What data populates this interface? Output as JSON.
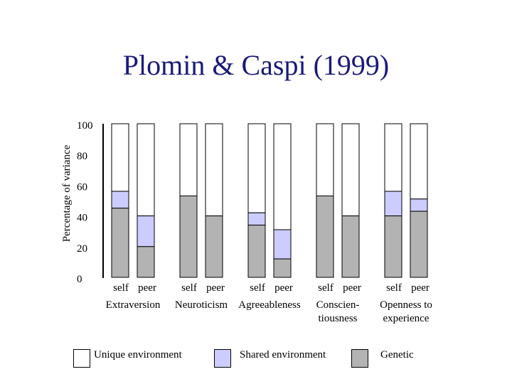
{
  "chart_data": {
    "type": "bar",
    "stacked": true,
    "title": "Plomin & Caspi (1999)",
    "ylabel": "Percentage of variance",
    "ylim": [
      0,
      100
    ],
    "yticks": [
      0,
      20,
      40,
      60,
      80,
      100
    ],
    "groups": [
      {
        "name": "Extraversion",
        "label_lines": [
          "Extraversion"
        ],
        "bars": [
          {
            "label": "self",
            "genetic": 45,
            "shared": 11
          },
          {
            "label": "peer",
            "genetic": 20,
            "shared": 20
          }
        ]
      },
      {
        "name": "Neuroticism",
        "label_lines": [
          "Neuroticism"
        ],
        "bars": [
          {
            "label": "self",
            "genetic": 53,
            "shared": 0
          },
          {
            "label": "peer",
            "genetic": 40,
            "shared": 0
          }
        ]
      },
      {
        "name": "Agreeableness",
        "label_lines": [
          "Agreeableness"
        ],
        "bars": [
          {
            "label": "self",
            "genetic": 34,
            "shared": 8
          },
          {
            "label": "peer",
            "genetic": 12,
            "shared": 19
          }
        ]
      },
      {
        "name": "Conscientiousness",
        "label_lines": [
          "Conscien-",
          "tiousness"
        ],
        "bars": [
          {
            "label": "self",
            "genetic": 53,
            "shared": 0
          },
          {
            "label": "peer",
            "genetic": 40,
            "shared": 0
          }
        ]
      },
      {
        "name": "Openness to experience",
        "label_lines": [
          "Openness to",
          "experience"
        ],
        "bars": [
          {
            "label": "self",
            "genetic": 40,
            "shared": 16
          },
          {
            "label": "peer",
            "genetic": 43,
            "shared": 8
          }
        ]
      }
    ],
    "legend": [
      {
        "key": "unique",
        "label": "Unique environment",
        "color": "#ffffff"
      },
      {
        "key": "shared",
        "label": "Shared environment",
        "color": "#ccccff"
      },
      {
        "key": "genetic",
        "label": "Genetic",
        "color": "#b3b3b3"
      }
    ]
  }
}
